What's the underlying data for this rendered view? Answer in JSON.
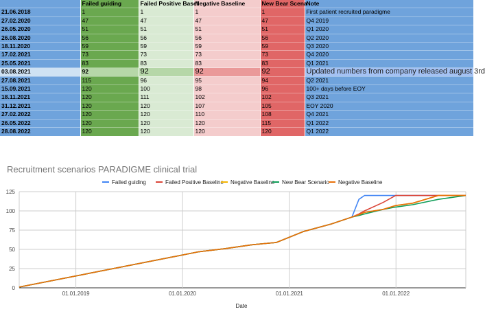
{
  "table": {
    "headers": [
      "",
      "Failed guiding",
      "Failed Positive Basel",
      "Negative Baseline",
      "New Bear Scena",
      "Note"
    ],
    "rows": [
      [
        "21.06.2018",
        "1",
        "1",
        "1",
        "1",
        "First patient recruited paradigme"
      ],
      [
        "27.02.2020",
        "47",
        "47",
        "47",
        "47",
        "Q4 2019"
      ],
      [
        "26.05.2020",
        "51",
        "51",
        "51",
        "51",
        "Q1 2020"
      ],
      [
        "26.08.2020",
        "56",
        "56",
        "56",
        "56",
        "Q2 2020"
      ],
      [
        "18.11.2020",
        "59",
        "59",
        "59",
        "59",
        "Q3 2020"
      ],
      [
        "17.02.2021",
        "73",
        "73",
        "73",
        "73",
        "Q4 2020"
      ],
      [
        "25.05.2021",
        "83",
        "83",
        "83",
        "83",
        "Q1 2021"
      ],
      [
        "03.08.2021",
        "92",
        "92",
        "92",
        "92",
        "Updated numbers from company released august 3rd"
      ],
      [
        "27.08.2021",
        "115",
        "96",
        "95",
        "94",
        "Q2 2021"
      ],
      [
        "15.09.2021",
        "120",
        "100",
        "98",
        "96",
        "100+ days before EOY"
      ],
      [
        "18.11.2021",
        "120",
        "111",
        "102",
        "102",
        "Q3 2021"
      ],
      [
        "31.12.2021",
        "120",
        "120",
        "107",
        "105",
        "EOY 2020"
      ],
      [
        "27.02.2022",
        "120",
        "120",
        "110",
        "108",
        "Q4 2021"
      ],
      [
        "26.05.2022",
        "120",
        "120",
        "120",
        "115",
        "Q1 2022"
      ],
      [
        "28.08.2022",
        "120",
        "120",
        "120",
        "120",
        "Q1 2022"
      ]
    ],
    "highlight_row": 7
  },
  "chart_data": {
    "type": "line",
    "title": "Recruitment scenarios PARADIGME clinical trial",
    "xlabel": "Date",
    "ylabel": "",
    "ylim": [
      0,
      125
    ],
    "yticks": [
      0,
      25,
      50,
      75,
      100,
      125
    ],
    "xtick_labels": [
      "01.01.2019",
      "01.01.2020",
      "01.01.2021",
      "01.01.2022"
    ],
    "xtick_dates": [
      "2019-01-01",
      "2020-01-01",
      "2021-01-01",
      "2022-01-01"
    ],
    "x": [
      "2018-06-21",
      "2020-02-27",
      "2020-05-26",
      "2020-08-26",
      "2020-11-18",
      "2021-02-17",
      "2021-05-25",
      "2021-08-03",
      "2021-08-27",
      "2021-09-15",
      "2021-11-18",
      "2021-12-31",
      "2022-02-27",
      "2022-05-26",
      "2022-08-28"
    ],
    "xlim": [
      "2018-06-21",
      "2022-08-28"
    ],
    "legend_position": "top",
    "series": [
      {
        "name": "Failed guiding",
        "color": "#4285f4",
        "values": [
          1,
          47,
          51,
          56,
          59,
          73,
          83,
          92,
          115,
          120,
          120,
          120,
          120,
          120,
          120
        ]
      },
      {
        "name": "Failed Positive Baseline",
        "color": "#db4437",
        "values": [
          1,
          47,
          51,
          56,
          59,
          73,
          83,
          92,
          96,
          100,
          111,
          120,
          120,
          120,
          120
        ]
      },
      {
        "name": "Negative Baseline",
        "color": "#f4b400",
        "values": [
          1,
          47,
          51,
          56,
          59,
          73,
          83,
          92,
          95,
          98,
          102,
          107,
          110,
          120,
          120
        ]
      },
      {
        "name": "New Bear Scenario",
        "color": "#0f9d58",
        "values": [
          1,
          47,
          51,
          56,
          59,
          73,
          83,
          92,
          94,
          96,
          102,
          105,
          108,
          115,
          120
        ]
      },
      {
        "name": "Negative Baseline",
        "color": "#e8710a",
        "values": [
          1,
          47,
          51,
          56,
          59,
          73,
          83,
          92,
          95,
          98,
          102,
          107,
          110,
          120,
          120
        ]
      }
    ]
  }
}
